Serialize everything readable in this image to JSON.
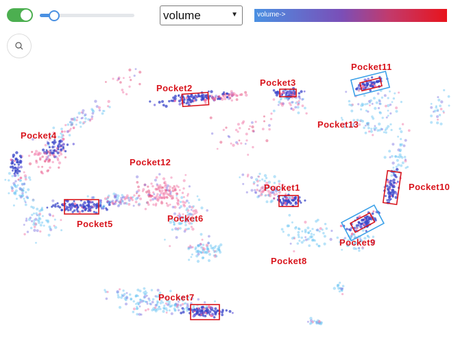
{
  "toolbar": {
    "toggle_on": true,
    "slider_value": 0.15,
    "select_value": "volume",
    "select_options": [
      "volume"
    ],
    "legend_label": "volume->",
    "legend_colors": [
      "#4a90e2",
      "#e8141c"
    ]
  },
  "search_icon": "search-icon",
  "colors": {
    "point_low": "#62c2f2",
    "point_mid": "#7a6fe0",
    "point_high": "#f06aa0",
    "dense": "#3a46c8",
    "pocket_box": "#d8141c",
    "highlight_box": "#3aa0e8",
    "label": "#d8141c"
  },
  "pockets": [
    {
      "label": "Pocket1"
    },
    {
      "label": "Pocket2"
    },
    {
      "label": "Pocket3"
    },
    {
      "label": "Pocket4"
    },
    {
      "label": "Pocket5"
    },
    {
      "label": "Pocket6"
    },
    {
      "label": "Pocket7"
    },
    {
      "label": "Pocket8"
    },
    {
      "label": "Pocket9"
    },
    {
      "label": "Pocket10"
    },
    {
      "label": "Pocket11"
    },
    {
      "label": "Pocket12"
    },
    {
      "label": "Pocket13"
    }
  ]
}
